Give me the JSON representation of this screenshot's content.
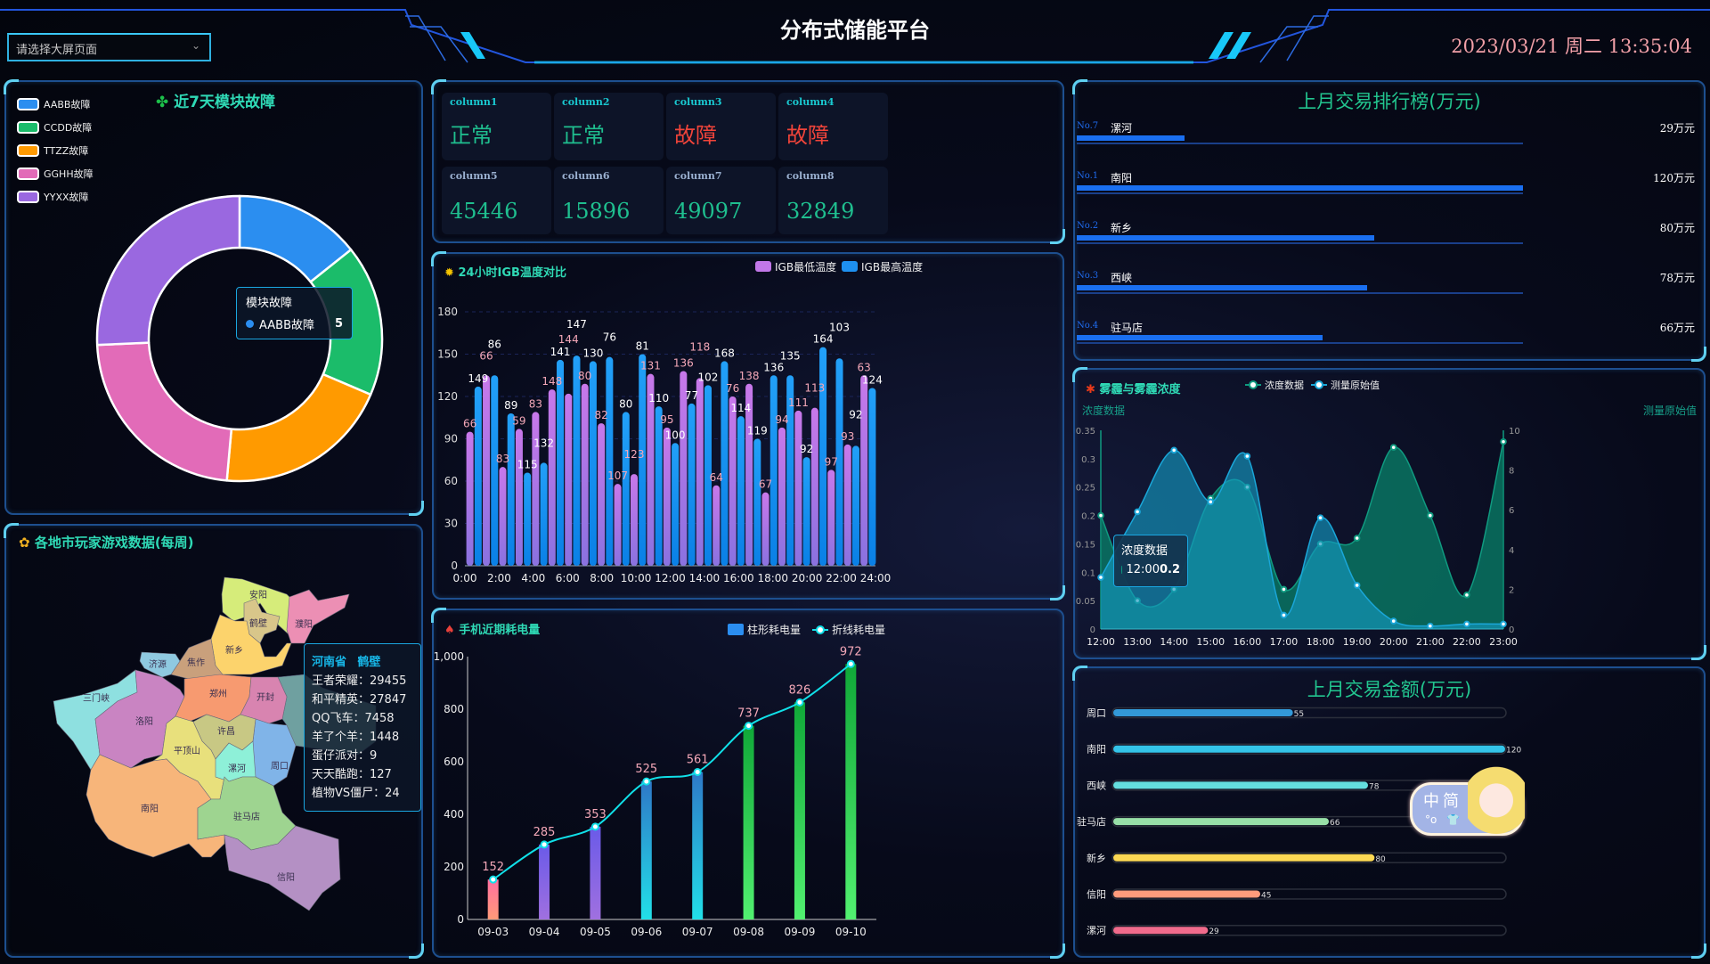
{
  "header": {
    "title": "分布式储能平台",
    "select_placeholder": "请选择大屏页面",
    "datetime": "2023/03/21 周二 13:35:04"
  },
  "fault_panel": {
    "title": "近7天模块故障",
    "title_icon": "clover-icon",
    "legend": [
      {
        "label": "AABB故障",
        "color": "#2b8ef0",
        "value": 5
      },
      {
        "label": "CCDD故障",
        "color": "#1bbc6a",
        "value": 6
      },
      {
        "label": "TTZZ故障",
        "color": "#ff9a00",
        "value": 7
      },
      {
        "label": "GGHH故障",
        "color": "#e26bb8",
        "value": 8
      },
      {
        "label": "YYXX故障",
        "color": "#9a68e0",
        "value": 9
      }
    ],
    "tooltip": {
      "title": "模块故障",
      "name": "AABB故障",
      "value": "5"
    }
  },
  "map_panel": {
    "title": "各地市玩家游戏数据(每周)",
    "title_icon": "sunflower-icon",
    "regions": [
      {
        "name": "安阳",
        "color": "#d6ec7a"
      },
      {
        "name": "鹤壁",
        "color": "#d8c68a"
      },
      {
        "name": "濮阳",
        "color": "#ec8fb4"
      },
      {
        "name": "新乡",
        "color": "#fcd36c"
      },
      {
        "name": "焦作",
        "color": "#c9a07c"
      },
      {
        "name": "济源",
        "color": "#8fc9e0"
      },
      {
        "name": "三门峡",
        "color": "#8ee0e0"
      },
      {
        "name": "洛阳",
        "color": "#c984c2"
      },
      {
        "name": "郑州",
        "color": "#f79a70"
      },
      {
        "name": "开封",
        "color": "#d884b0"
      },
      {
        "name": "周口",
        "color": "#80b4e8"
      },
      {
        "name": "许昌",
        "color": "#c8c884"
      },
      {
        "name": "平顶山",
        "color": "#e8e07c"
      },
      {
        "name": "漯河",
        "color": "#8ef0d8"
      },
      {
        "name": "南阳",
        "color": "#f7b57a"
      },
      {
        "name": "驻马店",
        "color": "#9ed490"
      },
      {
        "name": "信阳",
        "color": "#b490c4"
      }
    ],
    "tooltip": {
      "province": "河南省",
      "city": "鹤壁",
      "rows": [
        "王者荣耀：29455",
        "和平精英：27847",
        "QQ飞车：7458",
        "羊了个羊：1448",
        "蛋仔派对：9",
        "天天酷跑：127",
        "植物VS僵尸：24"
      ]
    }
  },
  "status_cards": [
    {
      "label": "column1",
      "value": "正常",
      "color": "#1fbf8f"
    },
    {
      "label": "column2",
      "value": "正常",
      "color": "#1fbf8f"
    },
    {
      "label": "column3",
      "value": "故障",
      "color": "#f0443a"
    },
    {
      "label": "column4",
      "value": "故障",
      "color": "#f0443a"
    },
    {
      "label": "column5",
      "value": "45446",
      "color": "#1fbf8f"
    },
    {
      "label": "column6",
      "value": "15896",
      "color": "#1fbf8f"
    },
    {
      "label": "column7",
      "value": "49097",
      "color": "#1fbf8f"
    },
    {
      "label": "column8",
      "value": "32849",
      "color": "#1fbf8f"
    }
  ],
  "chart_data": [
    {
      "type": "bar",
      "title": "24小时IGB温度对比",
      "title_icon": "sun-icon",
      "x_ticks": [
        "0:00",
        "2:00",
        "4:00",
        "6:00",
        "8:00",
        "10:00",
        "12:00",
        "14:00",
        "16:00",
        "18:00",
        "20:00",
        "22:00",
        "24:00"
      ],
      "ylim": [
        0,
        180
      ],
      "y_ticks": [
        0,
        30,
        60,
        90,
        120,
        150,
        180
      ],
      "legend_position": "top-right",
      "series": [
        {
          "name": "IGB最低温度",
          "color": "#c177e8",
          "values": [
            95,
            135,
            70,
            97,
            109,
            125,
            122,
            129,
            101,
            58,
            65,
            136,
            98,
            138,
            133,
            57,
            120,
            129,
            52,
            98,
            110,
            112,
            68,
            86,
            135
          ],
          "labels": [
            66,
            66,
            83,
            59,
            83,
            148,
            144,
            80,
            82,
            107,
            123,
            131,
            95,
            136,
            118,
            64,
            76,
            138,
            67,
            94,
            111,
            113,
            97,
            93,
            63
          ]
        },
        {
          "name": "IGB最高温度",
          "color": "#1e90f0",
          "values": [
            127,
            135,
            108,
            66,
            73,
            146,
            149,
            145,
            148,
            109,
            150,
            113,
            87,
            115,
            128,
            145,
            106,
            90,
            135,
            135,
            77,
            155,
            147,
            85,
            126
          ],
          "labels": [
            149,
            86,
            89,
            115,
            132,
            141,
            147,
            130,
            76,
            80,
            81,
            110,
            100,
            77,
            102,
            168,
            114,
            119,
            136,
            135,
            92,
            164,
            103,
            92,
            124
          ]
        }
      ]
    },
    {
      "type": "bar",
      "title": "手机近期耗电量",
      "title_icon": "mushroom-icon",
      "categories": [
        "09-03",
        "09-04",
        "09-05",
        "09-06",
        "09-07",
        "09-08",
        "09-09",
        "09-10"
      ],
      "ylim": [
        0,
        1000
      ],
      "y_ticks": [
        "0",
        "200",
        "400",
        "600",
        "800",
        "1,000"
      ],
      "legend_position": "top-right",
      "series": [
        {
          "name": "柱形耗电量",
          "type": "bar",
          "color": "#2b8ef0",
          "values": [
            152,
            285,
            353,
            525,
            561,
            737,
            826,
            972
          ]
        },
        {
          "name": "折线耗电量",
          "type": "line",
          "color": "#10e0e8",
          "values": [
            152,
            285,
            353,
            525,
            561,
            737,
            826,
            972
          ]
        }
      ]
    },
    {
      "type": "area",
      "title": "雾霾与雾霾浓度",
      "title_icon": "maple-leaf-icon",
      "x": [
        "12:00",
        "13:00",
        "14:00",
        "15:00",
        "16:00",
        "17:00",
        "18:00",
        "19:00",
        "20:00",
        "21:00",
        "22:00",
        "23:00"
      ],
      "ylabel": "浓度数据",
      "y2label": "测量原始值",
      "ylim": [
        0,
        0.35
      ],
      "y_ticks": [
        "0",
        "0.05",
        "0.1",
        "0.15",
        "0.2",
        "0.25",
        "0.3",
        "0.35"
      ],
      "y2lim": [
        0,
        10
      ],
      "y2_ticks": [
        "0",
        "2",
        "4",
        "6",
        "8",
        "10"
      ],
      "legend_position": "top-center",
      "series": [
        {
          "name": "浓度数据",
          "axis": "left",
          "color": "#0e8f74",
          "values": [
            0.2,
            0.05,
            0.07,
            0.23,
            0.25,
            0.07,
            0.15,
            0.16,
            0.32,
            0.2,
            0.06,
            0.33
          ]
        },
        {
          "name": "测量原始值",
          "axis": "right",
          "color": "#1aa6d8",
          "values": [
            2.6,
            5.9,
            9.0,
            6.4,
            8.7,
            0.7,
            5.6,
            2.2,
            0.4,
            0.15,
            0.25,
            0.25
          ]
        }
      ],
      "tooltip": {
        "title": "浓度数据",
        "x": "12:00",
        "value": "0.2"
      }
    },
    {
      "type": "bar",
      "title": "上月交易金额(万元)",
      "orientation": "horizontal",
      "categories": [
        "周口",
        "南阳",
        "西峡",
        "驻马店",
        "新乡",
        "信阳",
        "漯河"
      ],
      "values": [
        55,
        120,
        78,
        66,
        80,
        45,
        29
      ],
      "colors": [
        "#3399d8",
        "#34c4e8",
        "#64dede",
        "#98e0a8",
        "#fcd853",
        "#ff9c7c",
        "#f06b8c"
      ],
      "xlim": [
        0,
        120
      ]
    }
  ],
  "ranking": {
    "title": "上月交易排行榜(万元)",
    "max": 120,
    "items": [
      {
        "rank": "No.7",
        "city": "漯河",
        "value": 29,
        "text": "29万元"
      },
      {
        "rank": "No.1",
        "city": "南阳",
        "value": 120,
        "text": "120万元"
      },
      {
        "rank": "No.2",
        "city": "新乡",
        "value": 80,
        "text": "80万元"
      },
      {
        "rank": "No.3",
        "city": "西峡",
        "value": 78,
        "text": "78万元"
      },
      {
        "rank": "No.4",
        "city": "驻马店",
        "value": 66,
        "text": "66万元"
      }
    ]
  },
  "ime_widget": {
    "mode": "中",
    "charset": "简"
  }
}
